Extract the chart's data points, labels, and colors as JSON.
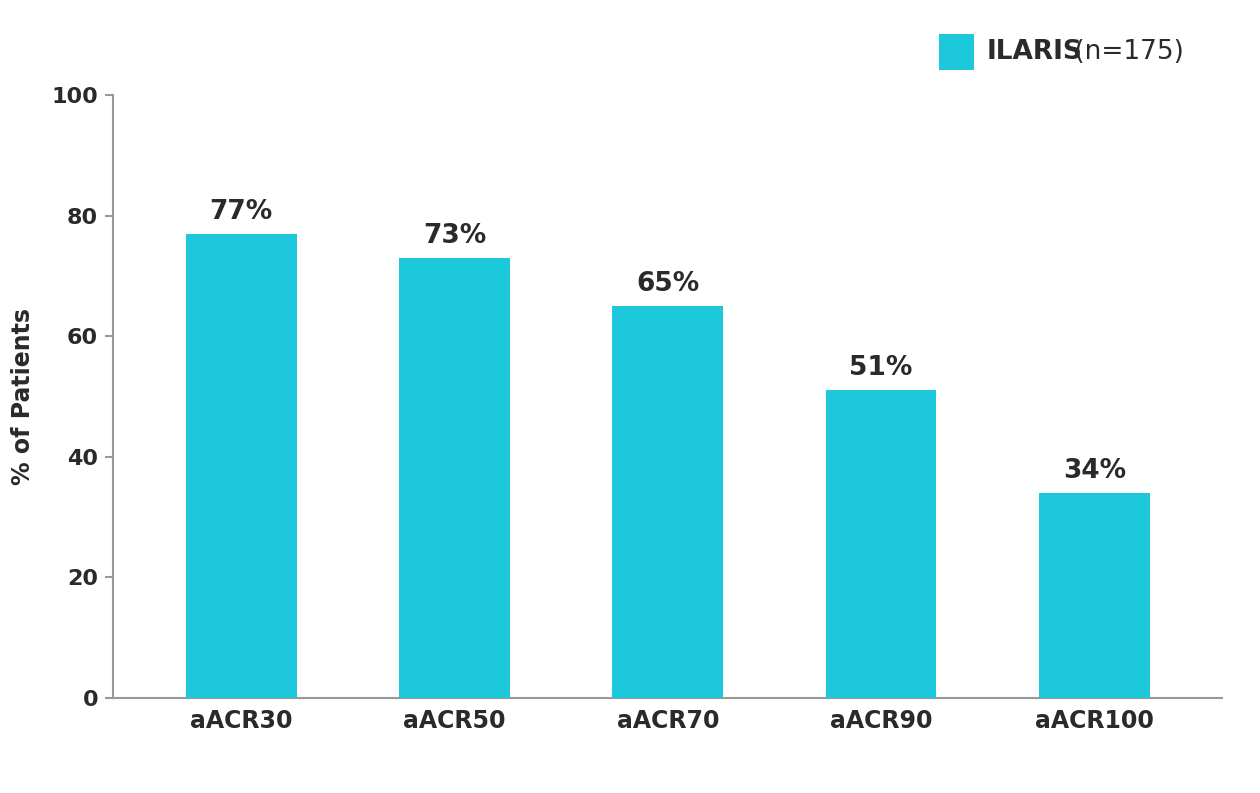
{
  "categories": [
    "aACR30",
    "aACR50",
    "aACR70",
    "aACR90",
    "aACR100"
  ],
  "values": [
    77,
    73,
    65,
    51,
    34
  ],
  "bar_color": "#1EC8DC",
  "label_color": "#2a2a2a",
  "axis_color": "#999999",
  "background_color": "#ffffff",
  "ylabel": "% of Patients",
  "ylim": [
    0,
    100
  ],
  "yticks": [
    0,
    20,
    40,
    60,
    80,
    100
  ],
  "legend_label": "ILARIS",
  "legend_n": " (n=175)",
  "bar_width": 0.52,
  "value_fontsize": 19,
  "label_fontsize": 17,
  "ylabel_fontsize": 17,
  "ytick_fontsize": 16,
  "legend_fontsize": 19
}
